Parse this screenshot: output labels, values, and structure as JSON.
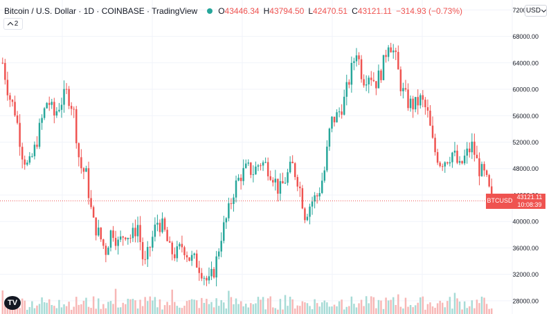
{
  "header": {
    "symbol": "Bitcoin / U.S. Dollar · 1D · COINBASE · TradingView",
    "o_label": "O",
    "o_value": "43446.34",
    "h_label": "H",
    "h_value": "43794.50",
    "l_label": "L",
    "l_value": "42470.51",
    "c_label": "C",
    "c_value": "43121.11",
    "change": "−314.93 (−0.73%)"
  },
  "indicators_count": "2",
  "currency": "USD",
  "price_tag": {
    "ticker": "BTCUSD",
    "countdown": "10:08:39",
    "price": "43121.11"
  },
  "colors": {
    "up": "#26a69a",
    "down": "#ef5350",
    "up_volume": "#a7dbd6",
    "down_volume": "#f7b7b6"
  },
  "logo_icon": "tradingview-logo-icon",
  "chart_data": {
    "type": "candlestick",
    "y_ticks": [
      "72000.00",
      "68000.00",
      "64000.00",
      "60000.00",
      "56000.00",
      "52000.00",
      "48000.00",
      "44000.00",
      "40000.00",
      "36000.00",
      "32000.00",
      "28000.00"
    ],
    "y_tick_values": [
      72000,
      68000,
      64000,
      60000,
      56000,
      52000,
      48000,
      44000,
      40000,
      36000,
      32000,
      28000
    ],
    "ylim": [
      26000,
      73500
    ],
    "last_price": 43121.11,
    "grid": true,
    "close": [
      64000,
      59000,
      56500,
      50500,
      48000,
      51000,
      55000,
      58500,
      56000,
      58000,
      59500,
      57000,
      48500,
      47000,
      40000,
      38000,
      35500,
      39000,
      36500,
      38500,
      37500,
      39500,
      33000,
      36500,
      40000,
      39000,
      35500,
      35000,
      36500,
      34500,
      34000,
      32500,
      30500,
      33000,
      38000,
      41000,
      45000,
      47000,
      48000,
      47500,
      49000,
      48500,
      47000,
      44500,
      46500,
      48500,
      46000,
      41000,
      43000,
      44000,
      47500,
      55000,
      56000,
      58000,
      62000,
      66000,
      61500,
      62500,
      61000,
      63000,
      67500,
      65000,
      60000,
      58000,
      57500,
      58500,
      56500,
      51000,
      49000,
      49500,
      50500,
      48000,
      50000,
      51500,
      48000,
      46800,
      43121
    ]
  }
}
